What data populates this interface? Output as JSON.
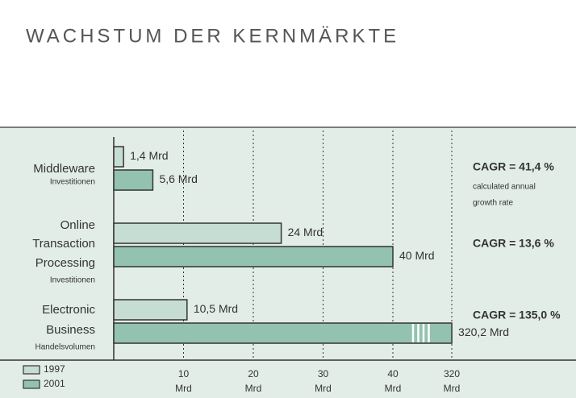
{
  "chart_data": {
    "type": "bar",
    "title": "WACHSTUM DER KERNMÄRKTE",
    "categories": [
      [
        "Middleware"
      ],
      [
        "Online",
        "Transaction",
        "Processing"
      ],
      [
        "Electronic",
        "Business"
      ]
    ],
    "category_notes": [
      "Investitionen",
      "Investitionen",
      "Handelsvolumen"
    ],
    "series": [
      {
        "name": "1997",
        "color": "#c6ddd4",
        "values": [
          1.4,
          24,
          10.5
        ],
        "value_labels": [
          "1,4 Mrd",
          "24 Mrd",
          "10,5 Mrd"
        ]
      },
      {
        "name": "2001",
        "color": "#93c2b1",
        "values": [
          5.6,
          40,
          320.2
        ],
        "value_labels": [
          "5,6 Mrd",
          "40 Mrd",
          "320,2 Mrd"
        ]
      }
    ],
    "annotations": [
      "CAGR = 41,4 %",
      "CAGR = 13,6 %",
      "CAGR = 135,0 %"
    ],
    "annotation_note": [
      "calculated annual",
      "growth rate"
    ],
    "xlim": [
      0,
      320
    ],
    "xticks": [
      10,
      20,
      30,
      40,
      320
    ],
    "x_unit": "Mrd",
    "broken_axis": true,
    "grid": true,
    "legend": "bottom-left"
  }
}
